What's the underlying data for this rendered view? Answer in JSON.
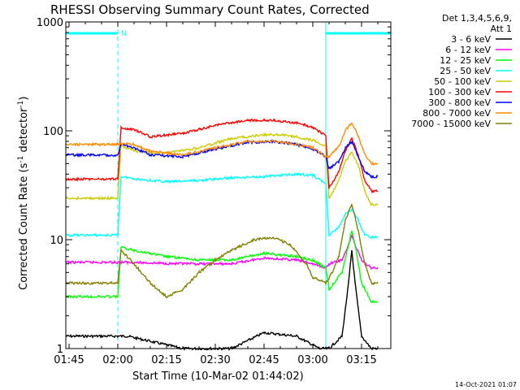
{
  "chart_data": {
    "type": "line",
    "title": "RHESSI Observing Summary Count Rates, Corrected",
    "xlabel": "Start Time (10-Mar-02 01:44:02)",
    "ylabel": "Corrected Count Rate (s⁻¹ detector⁻¹)",
    "ylabel_main": "Corrected Count Rate (s",
    "ylabel_sup1": "-1",
    "ylabel_mid": " detector",
    "ylabel_sup2": "-1",
    "ylabel_end": ")",
    "yscale": "log",
    "ylim": [
      1,
      1000
    ],
    "xlim": [
      "01:44",
      "03:24"
    ],
    "x_ticks": [
      "01:45",
      "02:00",
      "02:15",
      "02:30",
      "02:45",
      "03:00",
      "03:15"
    ],
    "y_ticks": [
      "1",
      "10",
      "100",
      "1000"
    ],
    "legend_header": [
      "Det 1,3,4,5,6,9,",
      "Att 1"
    ],
    "night_marker": "N",
    "date_stamp": "14-Oct-2021 01:07",
    "intervals": {
      "eclipse": [
        [
          "01:44",
          "02:00"
        ],
        [
          "03:04",
          "03:24"
        ]
      ]
    },
    "series": [
      {
        "name": "3 - 6 keV",
        "color": "#000000",
        "points": [
          [
            "01:44",
            1.3
          ],
          [
            "02:00",
            1.3
          ],
          [
            "02:03",
            1.3
          ],
          [
            "02:20",
            1.0
          ],
          [
            "02:35",
            1.0
          ],
          [
            "02:45",
            1.4
          ],
          [
            "02:55",
            1.3
          ],
          [
            "03:02",
            1.0
          ],
          [
            "03:05",
            1.0
          ],
          [
            "03:09",
            1.3
          ],
          [
            "03:11",
            4.0
          ],
          [
            "03:12",
            8.0
          ],
          [
            "03:13",
            4.0
          ],
          [
            "03:15",
            1.3
          ],
          [
            "03:18",
            1.0
          ],
          [
            "03:20",
            1.0
          ]
        ]
      },
      {
        "name": "6 - 12 keV",
        "color": "#ff00ff",
        "points": [
          [
            "01:44",
            6.2
          ],
          [
            "02:00",
            6.2
          ],
          [
            "02:03",
            6.2
          ],
          [
            "02:20",
            6.0
          ],
          [
            "02:35",
            6.0
          ],
          [
            "02:45",
            6.8
          ],
          [
            "02:55",
            6.5
          ],
          [
            "03:00",
            6.0
          ],
          [
            "03:04",
            5.5
          ],
          [
            "03:05",
            6.0
          ],
          [
            "03:09",
            6.5
          ],
          [
            "03:11",
            9.0
          ],
          [
            "03:12",
            11.0
          ],
          [
            "03:13",
            9.0
          ],
          [
            "03:15",
            6.5
          ],
          [
            "03:18",
            5.5
          ],
          [
            "03:20",
            5.5
          ]
        ]
      },
      {
        "name": "12 - 25 keV",
        "color": "#00ff00",
        "points": [
          [
            "01:44",
            3.0
          ],
          [
            "02:00",
            3.0
          ],
          [
            "02:01",
            8.5
          ],
          [
            "02:05",
            8.0
          ],
          [
            "02:15",
            7.0
          ],
          [
            "02:25",
            6.5
          ],
          [
            "02:35",
            6.5
          ],
          [
            "02:45",
            7.5
          ],
          [
            "02:55",
            7.0
          ],
          [
            "03:00",
            6.5
          ],
          [
            "03:04",
            5.5
          ],
          [
            "03:05",
            3.5
          ],
          [
            "03:09",
            5.0
          ],
          [
            "03:11",
            9.0
          ],
          [
            "03:12",
            12.0
          ],
          [
            "03:13",
            9.0
          ],
          [
            "03:15",
            4.0
          ],
          [
            "03:18",
            2.7
          ],
          [
            "03:20",
            2.7
          ]
        ]
      },
      {
        "name": "25 - 50 keV",
        "color": "#00ffff",
        "points": [
          [
            "01:44",
            11.0
          ],
          [
            "02:00",
            11.0
          ],
          [
            "02:01",
            38.0
          ],
          [
            "02:06",
            36.0
          ],
          [
            "02:15",
            34.0
          ],
          [
            "02:25",
            35.0
          ],
          [
            "02:35",
            37.0
          ],
          [
            "02:45",
            38.0
          ],
          [
            "02:55",
            40.0
          ],
          [
            "03:00",
            39.0
          ],
          [
            "03:04",
            33.0
          ],
          [
            "03:05",
            11.0
          ],
          [
            "03:08",
            13.0
          ],
          [
            "03:10",
            17.0
          ],
          [
            "03:12",
            19.0
          ],
          [
            "03:14",
            15.0
          ],
          [
            "03:16",
            11.0
          ],
          [
            "03:18",
            10.5
          ],
          [
            "03:20",
            10.5
          ]
        ]
      },
      {
        "name": "50 - 100 keV",
        "color": "#cccc00",
        "points": [
          [
            "01:44",
            24.0
          ],
          [
            "02:00",
            24.0
          ],
          [
            "02:01",
            72.0
          ],
          [
            "02:06",
            65.0
          ],
          [
            "02:15",
            62.0
          ],
          [
            "02:25",
            70.0
          ],
          [
            "02:35",
            85.0
          ],
          [
            "02:45",
            92.0
          ],
          [
            "02:50",
            92.0
          ],
          [
            "02:55",
            88.0
          ],
          [
            "03:00",
            82.0
          ],
          [
            "03:04",
            72.0
          ],
          [
            "03:05",
            24.0
          ],
          [
            "03:08",
            35.0
          ],
          [
            "03:10",
            52.0
          ],
          [
            "03:12",
            64.0
          ],
          [
            "03:14",
            48.0
          ],
          [
            "03:16",
            28.0
          ],
          [
            "03:18",
            21.0
          ],
          [
            "03:20",
            21.0
          ]
        ]
      },
      {
        "name": "100 - 300 keV",
        "color": "#ff0000",
        "points": [
          [
            "01:44",
            36.0
          ],
          [
            "02:00",
            36.0
          ],
          [
            "02:01",
            108.0
          ],
          [
            "02:06",
            100.0
          ],
          [
            "02:10",
            88.0
          ],
          [
            "02:20",
            95.0
          ],
          [
            "02:30",
            112.0
          ],
          [
            "02:40",
            125.0
          ],
          [
            "02:48",
            125.0
          ],
          [
            "02:55",
            118.0
          ],
          [
            "03:00",
            108.0
          ],
          [
            "03:04",
            90.0
          ],
          [
            "03:05",
            30.0
          ],
          [
            "03:08",
            42.0
          ],
          [
            "03:10",
            65.0
          ],
          [
            "03:12",
            85.0
          ],
          [
            "03:14",
            60.0
          ],
          [
            "03:16",
            35.0
          ],
          [
            "03:18",
            28.0
          ],
          [
            "03:20",
            28.0
          ]
        ]
      },
      {
        "name": "300 - 800 keV",
        "color": "#0000ff",
        "points": [
          [
            "01:44",
            60.0
          ],
          [
            "02:00",
            60.0
          ],
          [
            "02:01",
            75.0
          ],
          [
            "02:05",
            70.0
          ],
          [
            "02:10",
            60.0
          ],
          [
            "02:20",
            58.0
          ],
          [
            "02:30",
            68.0
          ],
          [
            "02:40",
            78.0
          ],
          [
            "02:48",
            80.0
          ],
          [
            "02:55",
            75.0
          ],
          [
            "03:00",
            68.0
          ],
          [
            "03:04",
            58.0
          ],
          [
            "03:05",
            45.0
          ],
          [
            "03:08",
            52.0
          ],
          [
            "03:10",
            70.0
          ],
          [
            "03:12",
            80.0
          ],
          [
            "03:14",
            58.0
          ],
          [
            "03:16",
            42.0
          ],
          [
            "03:18",
            38.0
          ],
          [
            "03:20",
            38.0
          ]
        ]
      },
      {
        "name": "800 - 7000 keV",
        "color": "#ff8c00",
        "points": [
          [
            "01:44",
            75.0
          ],
          [
            "02:00",
            75.0
          ],
          [
            "02:01",
            76.0
          ],
          [
            "02:05",
            75.0
          ],
          [
            "02:10",
            65.0
          ],
          [
            "02:20",
            60.0
          ],
          [
            "02:30",
            70.0
          ],
          [
            "02:40",
            80.0
          ],
          [
            "02:48",
            80.0
          ],
          [
            "02:55",
            75.0
          ],
          [
            "03:00",
            70.0
          ],
          [
            "03:04",
            58.0
          ],
          [
            "03:05",
            58.0
          ],
          [
            "03:08",
            72.0
          ],
          [
            "03:10",
            100.0
          ],
          [
            "03:12",
            120.0
          ],
          [
            "03:14",
            90.0
          ],
          [
            "03:16",
            60.0
          ],
          [
            "03:18",
            50.0
          ],
          [
            "03:20",
            50.0
          ]
        ]
      },
      {
        "name": "7000 - 15000 keV",
        "color": "#808000",
        "points": [
          [
            "01:44",
            4.0
          ],
          [
            "02:00",
            4.0
          ],
          [
            "02:01",
            8.0
          ],
          [
            "02:05",
            6.0
          ],
          [
            "02:10",
            4.0
          ],
          [
            "02:15",
            3.0
          ],
          [
            "02:20",
            3.5
          ],
          [
            "02:25",
            5.0
          ],
          [
            "02:30",
            6.5
          ],
          [
            "02:35",
            8.0
          ],
          [
            "02:42",
            10.0
          ],
          [
            "02:48",
            10.5
          ],
          [
            "02:53",
            9.0
          ],
          [
            "02:58",
            6.0
          ],
          [
            "03:00",
            4.5
          ],
          [
            "03:04",
            4.0
          ],
          [
            "03:06",
            5.0
          ],
          [
            "03:08",
            7.0
          ],
          [
            "03:10",
            15.0
          ],
          [
            "03:12",
            21.0
          ],
          [
            "03:14",
            12.0
          ],
          [
            "03:16",
            6.0
          ],
          [
            "03:18",
            4.0
          ],
          [
            "03:20",
            4.0
          ]
        ]
      }
    ]
  }
}
